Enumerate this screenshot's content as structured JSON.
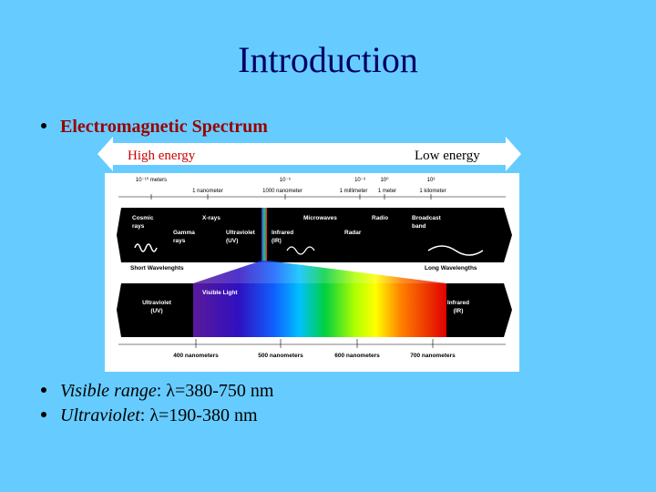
{
  "title": "Introduction",
  "heading": "Electromagnetic Spectrum",
  "arrow": {
    "left": "High energy",
    "right": "Low energy"
  },
  "figure": {
    "scale_top": [
      "10⁻¹⁰ meters",
      "1 nanometer",
      "10⁻⁵",
      "1000 nanometer",
      "10⁻³",
      "1 millimeter",
      "10⁰",
      "1 meter",
      "10³",
      "1 kilometer"
    ],
    "band_labels": [
      [
        "Cosmic",
        "rays"
      ],
      [
        "X-rays"
      ],
      [
        "Gamma",
        "rays"
      ],
      [
        "Ultraviolet",
        "(UV)"
      ],
      [
        "Infrared",
        "(IR)"
      ],
      [
        "Microwaves"
      ],
      [
        "Radio"
      ],
      [
        "Radar"
      ],
      [
        "Broadcast",
        "band"
      ]
    ],
    "short": "Short Wavelenghts",
    "long": "Long Wavelengths",
    "visible": "Visible Light",
    "lower_labels": [
      [
        "Ultraviolet",
        "(UV)"
      ],
      [
        "Infrared",
        "(IR)"
      ]
    ],
    "scale_bottom": [
      "400 nanometers",
      "500 nanometers",
      "600 nanometers",
      "700 nanometers"
    ]
  },
  "bullets": [
    {
      "term": "Visible range",
      "text": ": λ=380-750 nm"
    },
    {
      "term": "Ultraviolet",
      "text": ": λ=190-380 nm"
    }
  ]
}
